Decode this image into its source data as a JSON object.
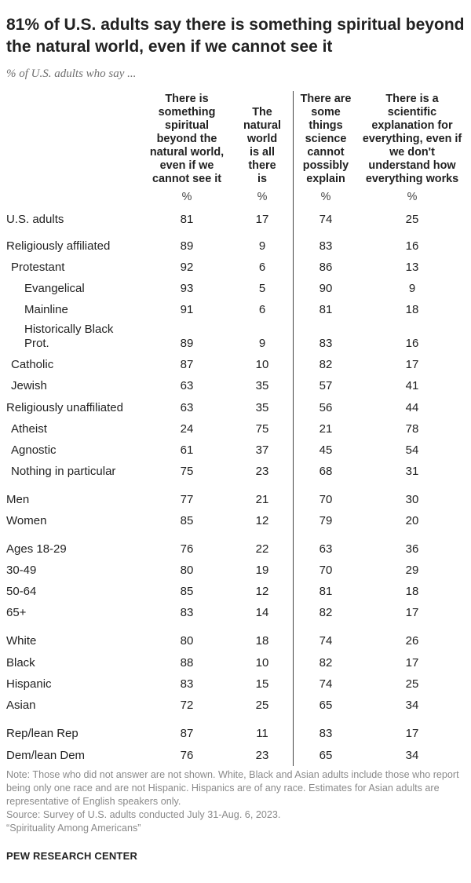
{
  "title": "81% of U.S. adults say there is something spiritual beyond the natural world, even if we cannot see it",
  "subtitle": "% of U.S. adults who say ...",
  "chart_data": {
    "type": "table",
    "columns": [
      {
        "key": "c1",
        "label": "There is something spiritual beyond the natural world, even if we cannot see it",
        "unit": "%"
      },
      {
        "key": "c2",
        "label": "The natural world is all there is",
        "unit": "%"
      },
      {
        "key": "c3",
        "label": "There are some things science cannot possibly explain",
        "unit": "%"
      },
      {
        "key": "c4",
        "label": "There is a scientific explanation for everything, even if we don't understand how everything works",
        "unit": "%"
      }
    ],
    "rows": [
      {
        "label": "U.S. adults",
        "indent": 0,
        "values": [
          81,
          17,
          74,
          25
        ]
      },
      {
        "label": "Religiously affiliated",
        "indent": 0,
        "values": [
          89,
          9,
          83,
          16
        ]
      },
      {
        "label": "Protestant",
        "indent": 1,
        "values": [
          92,
          6,
          86,
          13
        ]
      },
      {
        "label": "Evangelical",
        "indent": 2,
        "values": [
          93,
          5,
          90,
          9
        ]
      },
      {
        "label": "Mainline",
        "indent": 2,
        "values": [
          91,
          6,
          81,
          18
        ]
      },
      {
        "label": "Historically Black Prot.",
        "indent": 2,
        "values": [
          89,
          9,
          83,
          16
        ]
      },
      {
        "label": "Catholic",
        "indent": 1,
        "values": [
          87,
          10,
          82,
          17
        ]
      },
      {
        "label": "Jewish",
        "indent": 1,
        "values": [
          63,
          35,
          57,
          41
        ]
      },
      {
        "label": "Religiously unaffiliated",
        "indent": 0,
        "values": [
          63,
          35,
          56,
          44
        ]
      },
      {
        "label": "Atheist",
        "indent": 1,
        "values": [
          24,
          75,
          21,
          78
        ]
      },
      {
        "label": "Agnostic",
        "indent": 1,
        "values": [
          61,
          37,
          45,
          54
        ]
      },
      {
        "label": "Nothing in particular",
        "indent": 1,
        "values": [
          75,
          23,
          68,
          31
        ]
      },
      {
        "label": "Men",
        "indent": 0,
        "values": [
          77,
          21,
          70,
          30
        ]
      },
      {
        "label": "Women",
        "indent": 0,
        "values": [
          85,
          12,
          79,
          20
        ]
      },
      {
        "label": "Ages 18-29",
        "indent": 0,
        "values": [
          76,
          22,
          63,
          36
        ]
      },
      {
        "label": "30-49",
        "indent": 0,
        "values": [
          80,
          19,
          70,
          29
        ]
      },
      {
        "label": "50-64",
        "indent": 0,
        "values": [
          85,
          12,
          81,
          18
        ]
      },
      {
        "label": "65+",
        "indent": 0,
        "values": [
          83,
          14,
          82,
          17
        ]
      },
      {
        "label": "White",
        "indent": 0,
        "values": [
          80,
          18,
          74,
          26
        ]
      },
      {
        "label": "Black",
        "indent": 0,
        "values": [
          88,
          10,
          82,
          17
        ]
      },
      {
        "label": "Hispanic",
        "indent": 0,
        "values": [
          83,
          15,
          74,
          25
        ]
      },
      {
        "label": "Asian",
        "indent": 0,
        "values": [
          72,
          25,
          65,
          34
        ]
      },
      {
        "label": "Rep/lean Rep",
        "indent": 0,
        "values": [
          87,
          11,
          83,
          17
        ]
      },
      {
        "label": "Dem/lean Dem",
        "indent": 0,
        "values": [
          76,
          23,
          65,
          34
        ]
      }
    ]
  },
  "notes": {
    "note": "Note: Those who did not answer are not shown. White, Black and Asian adults include those who report being only one race and are not Hispanic. Hispanics are of any race. Estimates for Asian adults are representative of English speakers only.",
    "source": "Source: Survey of U.S. adults conducted July 31-Aug. 6, 2023.",
    "report": "“Spirituality Among Americans”"
  },
  "brand": "PEW RESEARCH CENTER"
}
